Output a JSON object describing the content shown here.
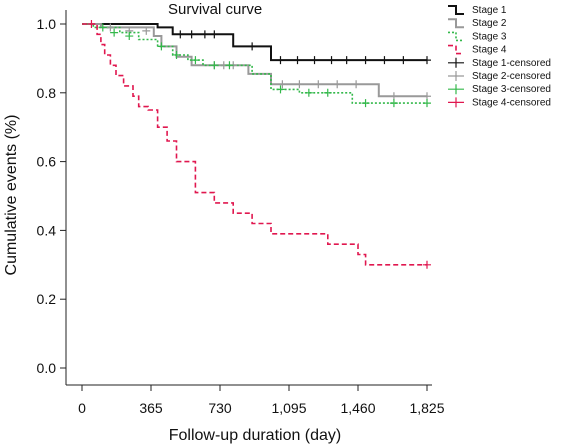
{
  "chart_data": {
    "type": "line",
    "title": "Survival curve",
    "xlabel": "Follow-up duration (day)",
    "ylabel": "Cumulative events (%)",
    "xlim": [
      0,
      1825
    ],
    "ylim": [
      0,
      1.0
    ],
    "xticks": [
      0,
      365,
      730,
      1095,
      1460,
      1825
    ],
    "xtick_labels": [
      "0",
      "365",
      "730",
      "1,095",
      "1,460",
      "1,825"
    ],
    "yticks": [
      0.0,
      0.2,
      0.4,
      0.6,
      0.8,
      1.0
    ],
    "ytick_labels": [
      "0.0",
      "0.2",
      "0.4",
      "0.6",
      "0.8",
      "1.0"
    ],
    "legend_position": "top-right",
    "series": [
      {
        "name": "Stage 1",
        "color": "#111111",
        "dash": "solid",
        "x": [
          0,
          400,
          480,
          800,
          1000,
          1825
        ],
        "y": [
          1.0,
          0.99,
          0.97,
          0.935,
          0.895,
          0.895
        ],
        "censored_label": "Stage 1-censored",
        "censored_x": [
          520,
          580,
          650,
          700,
          900,
          1050,
          1140,
          1230,
          1320,
          1400,
          1500,
          1600,
          1700,
          1825
        ],
        "censored_y": [
          0.97,
          0.97,
          0.97,
          0.97,
          0.935,
          0.895,
          0.895,
          0.895,
          0.895,
          0.895,
          0.895,
          0.895,
          0.895,
          0.895
        ]
      },
      {
        "name": "Stage 2",
        "color": "#999999",
        "dash": "solid",
        "x": [
          0,
          100,
          380,
          420,
          500,
          580,
          880,
          1000,
          1570,
          1825
        ],
        "y": [
          1.0,
          0.99,
          0.965,
          0.935,
          0.905,
          0.88,
          0.855,
          0.825,
          0.79,
          0.79
        ],
        "censored_label": "Stage 2-censored",
        "censored_x": [
          150,
          250,
          340,
          700,
          750,
          800,
          1060,
          1150,
          1250,
          1350,
          1450,
          1650,
          1825
        ],
        "censored_y": [
          0.99,
          0.98,
          0.98,
          0.88,
          0.88,
          0.88,
          0.825,
          0.825,
          0.825,
          0.825,
          0.825,
          0.79,
          0.79
        ]
      },
      {
        "name": "Stage 3",
        "color": "#33b84a",
        "dash": "dotted",
        "x": [
          0,
          60,
          200,
          300,
          400,
          480,
          560,
          640,
          900,
          1000,
          1150,
          1430,
          1825
        ],
        "y": [
          1.0,
          0.99,
          0.975,
          0.955,
          0.935,
          0.91,
          0.895,
          0.88,
          0.855,
          0.81,
          0.8,
          0.77,
          0.77
        ],
        "censored_label": "Stage 3-censored",
        "censored_x": [
          110,
          170,
          250,
          420,
          500,
          600,
          700,
          780,
          1050,
          1200,
          1300,
          1500,
          1650,
          1825
        ],
        "censored_y": [
          0.99,
          0.975,
          0.965,
          0.935,
          0.91,
          0.895,
          0.88,
          0.88,
          0.81,
          0.8,
          0.8,
          0.77,
          0.77,
          0.77
        ]
      },
      {
        "name": "Stage 4",
        "color": "#e0174f",
        "dash": "dashed",
        "x": [
          0,
          80,
          100,
          120,
          150,
          180,
          220,
          270,
          300,
          350,
          400,
          450,
          500,
          600,
          700,
          800,
          900,
          1000,
          1300,
          1460,
          1500,
          1825
        ],
        "y": [
          1.0,
          0.97,
          0.94,
          0.91,
          0.88,
          0.85,
          0.82,
          0.79,
          0.76,
          0.75,
          0.7,
          0.66,
          0.6,
          0.51,
          0.48,
          0.45,
          0.42,
          0.39,
          0.36,
          0.33,
          0.3,
          0.3
        ],
        "censored_label": "Stage 4-censored",
        "censored_x": [
          50,
          1825
        ],
        "censored_y": [
          1.0,
          0.3
        ]
      }
    ]
  }
}
